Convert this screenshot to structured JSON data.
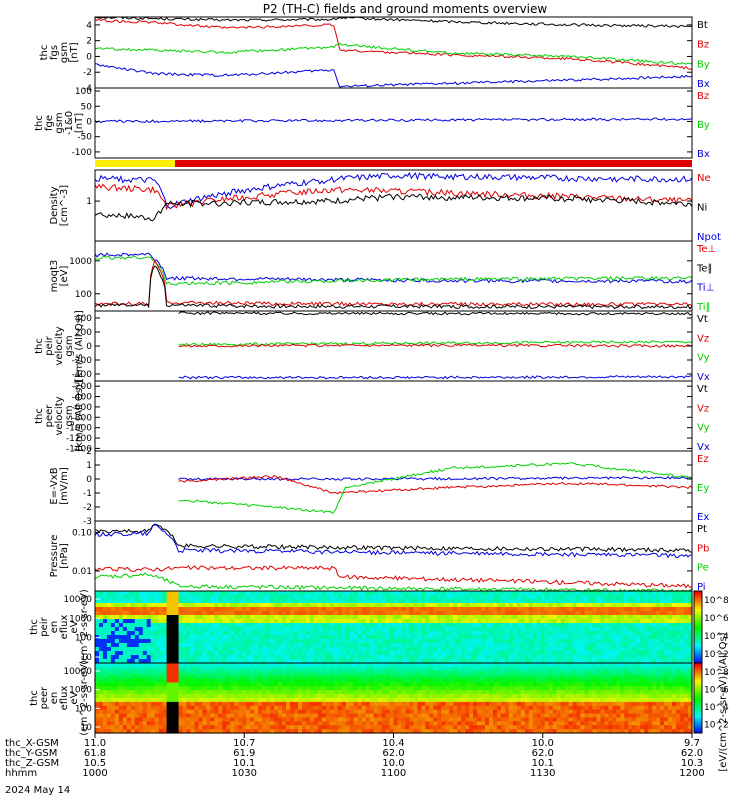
{
  "title": "P2 (TH-C) fields and ground moments overview",
  "date_label": "2024 May 14",
  "footer_rows": [
    {
      "label": "thc_X-GSM",
      "values": [
        "11.0",
        "10.7",
        "10.4",
        "10.0",
        "9.7"
      ]
    },
    {
      "label": "thc_Y-GSM",
      "values": [
        "61.8",
        "61.9",
        "62.0",
        "62.0",
        "62.0"
      ]
    },
    {
      "label": "thc_Z-GSM",
      "values": [
        "10.5",
        "10.1",
        "10.0",
        "10.1",
        "10.3"
      ]
    },
    {
      "label": "hhmm",
      "values": [
        "1000",
        "1030",
        "1100",
        "1130",
        "1200"
      ]
    }
  ],
  "colorbar_label": "[eV/(cm^2-s-sr-eV)] (All Qs)",
  "colorbar_ticks": [
    "10^8",
    "10^6",
    "10^4",
    "10^2"
  ],
  "colors": {
    "black": "#000000",
    "red": "#e00000",
    "green": "#00d000",
    "blue": "#0000e0",
    "yellow": "#ffee00"
  },
  "chart_data": [
    {
      "type": "line",
      "ylabel": [
        "thc",
        "fgs",
        "gsm",
        "[nT]"
      ],
      "ylim": [
        -4,
        5
      ],
      "yticks": [
        "4",
        "2",
        "0",
        "-2",
        "-4"
      ],
      "legend": [
        {
          "name": "Bt",
          "color": "black"
        },
        {
          "name": "Bz",
          "color": "red"
        },
        {
          "name": "By",
          "color": "green"
        },
        {
          "name": "Bx",
          "color": "blue"
        }
      ],
      "series": [
        {
          "name": "Bt",
          "color": "black",
          "x": [
            0,
            0.1,
            0.22,
            0.4,
            0.41,
            0.6,
            0.8,
            1.0
          ],
          "y": [
            5.0,
            4.8,
            4.6,
            4.7,
            4.9,
            4.4,
            4.0,
            3.8
          ]
        },
        {
          "name": "Bz",
          "color": "red",
          "x": [
            0,
            0.1,
            0.22,
            0.4,
            0.41,
            0.6,
            0.8,
            1.0
          ],
          "y": [
            4.6,
            4.3,
            3.6,
            4.0,
            0.8,
            0.2,
            -0.3,
            -1.5
          ]
        },
        {
          "name": "By",
          "color": "green",
          "x": [
            0,
            0.1,
            0.22,
            0.4,
            0.41,
            0.6,
            0.8,
            1.0
          ],
          "y": [
            1.0,
            0.8,
            0.5,
            1.2,
            1.5,
            0.4,
            0.0,
            -1.0
          ]
        },
        {
          "name": "Bx",
          "color": "blue",
          "x": [
            0,
            0.1,
            0.22,
            0.4,
            0.41,
            0.6,
            0.8,
            1.0
          ],
          "y": [
            -1.0,
            -2.2,
            -2.4,
            -1.7,
            -3.8,
            -3.4,
            -3.0,
            -2.5
          ]
        }
      ]
    },
    {
      "type": "line",
      "ylabel": [
        "thc",
        "fge",
        "gsm",
        "-1&0",
        "[nT]"
      ],
      "ylim": [
        -120,
        110
      ],
      "yticks": [
        "100",
        "50",
        "0",
        "-50",
        "-100"
      ],
      "legend": [
        {
          "name": "Bz",
          "color": "red"
        },
        {
          "name": "By",
          "color": "green"
        },
        {
          "name": "Bx",
          "color": "blue"
        }
      ],
      "series": [
        {
          "name": "Bx",
          "color": "blue",
          "x": [
            0,
            0.5,
            1.0
          ],
          "y": [
            0,
            4,
            8
          ]
        }
      ]
    },
    {
      "type": "line",
      "ylabel": [
        "Density",
        "[cm^-3]"
      ],
      "ylog": true,
      "ylim": [
        0.2,
        3.5
      ],
      "yticks": [
        "1"
      ],
      "legend": [
        {
          "name": "Ne",
          "color": "red"
        },
        {
          "name": "Ni",
          "color": "black"
        },
        {
          "name": "Npot",
          "color": "blue"
        }
      ],
      "series": [
        {
          "name": "Npot",
          "color": "blue",
          "x": [
            0,
            0.1,
            0.12,
            0.4,
            0.5,
            0.8,
            1.0
          ],
          "y": [
            2.5,
            2.3,
            0.8,
            2.4,
            2.8,
            2.5,
            2.4
          ]
        },
        {
          "name": "Ne",
          "color": "red",
          "x": [
            0,
            0.1,
            0.12,
            0.4,
            0.5,
            0.8,
            1.0
          ],
          "y": [
            1.8,
            1.6,
            0.8,
            1.6,
            1.5,
            1.2,
            1.0
          ]
        },
        {
          "name": "Ni",
          "color": "black",
          "x": [
            0,
            0.1,
            0.12,
            0.4,
            0.5,
            0.8,
            1.0
          ],
          "y": [
            0.6,
            0.5,
            0.9,
            1.0,
            1.2,
            1.1,
            0.9
          ]
        }
      ]
    },
    {
      "type": "line",
      "ylabel": [
        "moqt3",
        "[eV]"
      ],
      "ylog": true,
      "ylim": [
        30,
        4000
      ],
      "yticks": [
        "1000",
        "100"
      ],
      "legend": [
        {
          "name": "Te⊥",
          "color": "red"
        },
        {
          "name": "Te∥",
          "color": "black"
        },
        {
          "name": "Ti⊥",
          "color": "blue"
        },
        {
          "name": "Ti∥",
          "color": "green"
        }
      ],
      "series": [
        {
          "name": "Ti⊥",
          "color": "blue",
          "x": [
            0,
            0.09,
            0.12,
            0.3,
            0.6,
            1.0
          ],
          "y": [
            1500,
            1600,
            300,
            280,
            250,
            240
          ]
        },
        {
          "name": "Ti∥",
          "color": "green",
          "x": [
            0,
            0.09,
            0.12,
            0.3,
            0.6,
            1.0
          ],
          "y": [
            1200,
            1300,
            200,
            230,
            280,
            300
          ]
        },
        {
          "name": "Te⊥",
          "color": "red",
          "x": [
            0,
            0.09,
            0.1,
            0.12,
            0.3,
            1.0
          ],
          "y": [
            50,
            50,
            900,
            55,
            50,
            48
          ]
        },
        {
          "name": "Te∥",
          "color": "black",
          "x": [
            0,
            0.09,
            0.1,
            0.12,
            0.3,
            1.0
          ],
          "y": [
            45,
            45,
            700,
            45,
            42,
            40
          ]
        }
      ]
    },
    {
      "type": "line",
      "ylabel": [
        "thc",
        "peir",
        "velocity",
        "gsm",
        "[km/s (All Qs)]"
      ],
      "ylim": [
        -500,
        500
      ],
      "yticks": [
        "400",
        "200",
        "0",
        "-200",
        "-400"
      ],
      "legend": [
        {
          "name": "Vt",
          "color": "black"
        },
        {
          "name": "Vz",
          "color": "red"
        },
        {
          "name": "Vy",
          "color": "green"
        },
        {
          "name": "Vx",
          "color": "blue"
        }
      ],
      "series": [
        {
          "name": "Vt",
          "color": "black",
          "x": [
            0.14,
            0.5,
            1.0
          ],
          "y": [
            470,
            465,
            460
          ]
        },
        {
          "name": "Vy",
          "color": "green",
          "x": [
            0.14,
            0.5,
            1.0
          ],
          "y": [
            20,
            40,
            60
          ]
        },
        {
          "name": "Vz",
          "color": "red",
          "x": [
            0.14,
            0.5,
            1.0
          ],
          "y": [
            0,
            10,
            0
          ]
        },
        {
          "name": "Vx",
          "color": "blue",
          "x": [
            0.14,
            0.5,
            1.0
          ],
          "y": [
            -450,
            -450,
            -440
          ]
        }
      ]
    },
    {
      "type": "line",
      "ylabel": [
        "thc",
        "peer",
        "velocity",
        "gsm",
        "[km/s (All Qs)]"
      ],
      "ylim": [
        -1450,
        -100
      ],
      "yticks": [
        "-200",
        "-400",
        "-600",
        "-800",
        "-1000",
        "-1200",
        "-1400"
      ],
      "legend": [
        {
          "name": "Vt",
          "color": "black"
        },
        {
          "name": "Vz",
          "color": "red"
        },
        {
          "name": "Vy",
          "color": "green"
        },
        {
          "name": "Vx",
          "color": "blue"
        }
      ],
      "series": []
    },
    {
      "type": "line",
      "ylabel": [
        "E=-VxB",
        "[mV/m]"
      ],
      "ylim": [
        -3,
        2
      ],
      "yticks": [
        "2",
        "1",
        "0",
        "-1",
        "-2",
        "-3"
      ],
      "legend": [
        {
          "name": "Ez",
          "color": "red"
        },
        {
          "name": "Ey",
          "color": "green"
        },
        {
          "name": "Ex",
          "color": "blue"
        }
      ],
      "series": [
        {
          "name": "Ex",
          "color": "blue",
          "x": [
            0.14,
            0.5,
            1.0
          ],
          "y": [
            0,
            0,
            0.1
          ]
        },
        {
          "name": "Ez",
          "color": "red",
          "x": [
            0.14,
            0.3,
            0.4,
            0.6,
            0.8,
            1.0
          ],
          "y": [
            -0.2,
            0.2,
            -1.0,
            -0.6,
            -0.3,
            -0.6
          ]
        },
        {
          "name": "Ey",
          "color": "green",
          "x": [
            0.14,
            0.3,
            0.4,
            0.42,
            0.6,
            0.8,
            1.0
          ],
          "y": [
            -1.5,
            -2.0,
            -2.4,
            -0.6,
            0.8,
            1.1,
            0.1
          ]
        }
      ]
    },
    {
      "type": "line",
      "ylabel": [
        "Pressure",
        "[nPa]"
      ],
      "ylog": true,
      "ylim": [
        0.003,
        0.2
      ],
      "yticks": [
        "0.10",
        "0.01"
      ],
      "legend": [
        {
          "name": "Pt",
          "color": "black"
        },
        {
          "name": "Pb",
          "color": "red"
        },
        {
          "name": "Pe",
          "color": "green"
        },
        {
          "name": "Pi",
          "color": "blue"
        }
      ],
      "series": [
        {
          "name": "Pt",
          "color": "black",
          "x": [
            0,
            0.09,
            0.1,
            0.14,
            0.5,
            1.0
          ],
          "y": [
            0.11,
            0.11,
            0.17,
            0.045,
            0.04,
            0.035
          ]
        },
        {
          "name": "Pi",
          "color": "blue",
          "x": [
            0,
            0.09,
            0.1,
            0.14,
            0.5,
            1.0
          ],
          "y": [
            0.09,
            0.095,
            0.16,
            0.035,
            0.03,
            0.025
          ]
        },
        {
          "name": "Pb",
          "color": "red",
          "x": [
            0,
            0.09,
            0.14,
            0.4,
            0.41,
            0.8,
            1.0
          ],
          "y": [
            0.011,
            0.011,
            0.012,
            0.012,
            0.007,
            0.005,
            0.004
          ]
        },
        {
          "name": "Pe",
          "color": "green",
          "x": [
            0,
            0.09,
            0.14,
            0.5,
            1.0
          ],
          "y": [
            0.007,
            0.008,
            0.004,
            0.0035,
            0.003
          ]
        }
      ]
    },
    {
      "type": "heatmap",
      "ylabel": [
        "thc",
        "peir",
        "en",
        "eflux",
        "eV",
        "(cm^2-s-sr-eV)"
      ],
      "yticks": [
        "10000",
        "1000",
        "100",
        "10"
      ],
      "colorbar_ticks": [
        "10^8",
        "10^6",
        "10^4",
        "10^2"
      ]
    },
    {
      "type": "heatmap",
      "ylabel": [
        "thc",
        "peer",
        "en",
        "eflux",
        "eV",
        "(cm^2-s-sr-eV)"
      ],
      "yticks": [
        "10000",
        "1000",
        "100",
        "10"
      ],
      "colorbar_ticks": [
        "10^8",
        "10^6",
        "10^4",
        "10^2"
      ]
    }
  ]
}
